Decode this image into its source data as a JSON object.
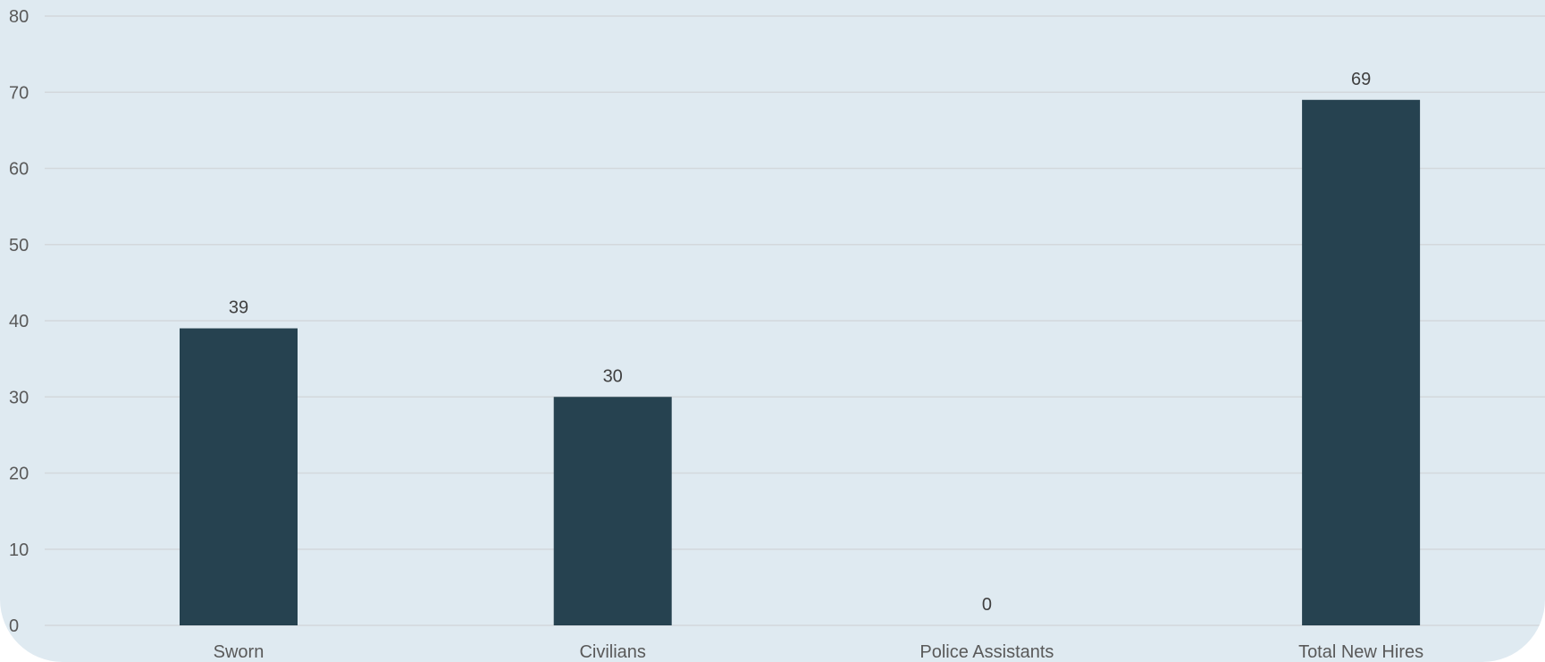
{
  "chart_data": {
    "type": "bar",
    "categories": [
      "Sworn",
      "Civilians",
      "Police Assistants",
      "Total New Hires"
    ],
    "values": [
      39,
      30,
      0,
      69
    ],
    "data_labels": [
      "39",
      "30",
      "0",
      "69"
    ],
    "title": "",
    "xlabel": "",
    "ylabel": "",
    "ylim": [
      0,
      80
    ],
    "yticks": [
      0,
      10,
      20,
      30,
      40,
      50,
      60,
      70,
      80
    ],
    "grid": true,
    "legend": "none",
    "colors": {
      "bar": "#264250",
      "background": "#dfeaf1",
      "grid": "#d3d8dc",
      "tick_text": "#595959",
      "label_text": "#404040"
    }
  }
}
